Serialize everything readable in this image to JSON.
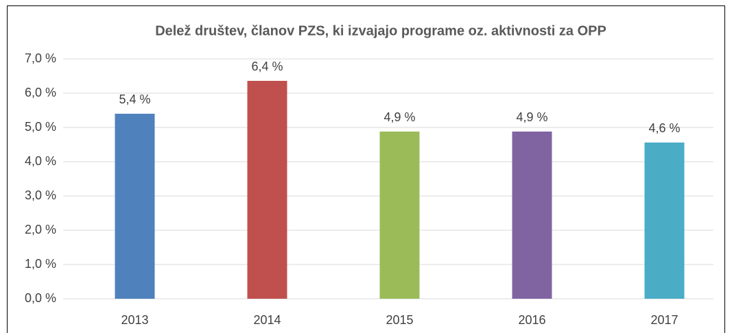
{
  "chart_data": {
    "type": "bar",
    "title": "Delež društev, članov PZS, ki izvajajo programe oz. aktivnosti za OPP",
    "categories": [
      "2013",
      "2014",
      "2015",
      "2016",
      "2017"
    ],
    "values": [
      5.4,
      6.36,
      4.88,
      4.88,
      4.56
    ],
    "value_labels": [
      "5,4 %",
      "6,4 %",
      "4,9 %",
      "4,9 %",
      "4,6 %"
    ],
    "colors": [
      "#4f81bd",
      "#c0504d",
      "#9bbb59",
      "#8064a2",
      "#4bacc6"
    ],
    "ylim": [
      0,
      7
    ],
    "yticks": [
      {
        "value": 0,
        "label": "0,0 %"
      },
      {
        "value": 1,
        "label": "1,0 %"
      },
      {
        "value": 2,
        "label": "2,0 %"
      },
      {
        "value": 3,
        "label": "3,0 %"
      },
      {
        "value": 4,
        "label": "4,0 %"
      },
      {
        "value": 5,
        "label": "5,0 %"
      },
      {
        "value": 6,
        "label": "6,0 %"
      },
      {
        "value": 7,
        "label": "7,0 %"
      }
    ],
    "grid": true
  }
}
